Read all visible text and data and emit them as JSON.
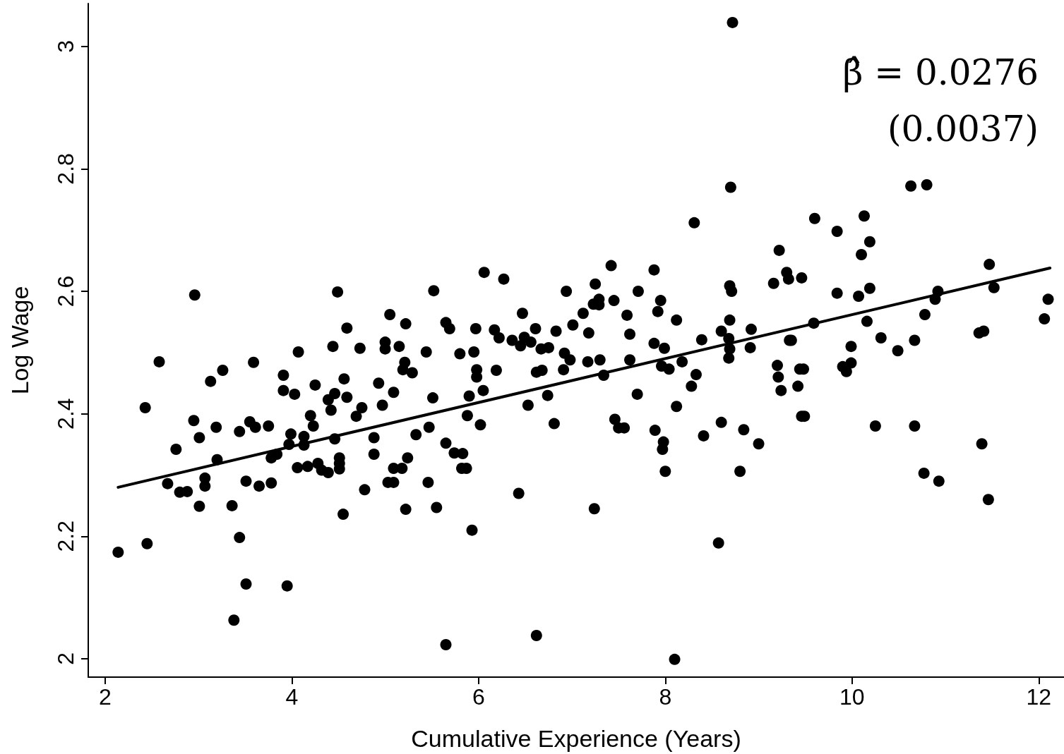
{
  "chart_data": {
    "type": "scatter",
    "xlabel": "Cumulative Experience (Years)",
    "ylabel": "Log Wage",
    "annotations": [
      "β̂ = 0.0276",
      "(0.0037)"
    ],
    "xlim": [
      1.82,
      12.27
    ],
    "ylim": [
      1.97,
      3.07
    ],
    "xticks": [
      2,
      4,
      6,
      8,
      10,
      12
    ],
    "yticks": [
      2,
      2.2,
      2.4,
      2.6,
      2.8,
      3
    ],
    "grid": false,
    "marker": "circle",
    "series": [
      {
        "color": "#000000",
        "x": [
          2.14,
          2.43,
          2.45,
          2.58,
          2.67,
          2.76,
          2.8,
          2.88,
          2.96,
          2.95,
          3.01,
          3.01,
          3.07,
          3.07,
          3.13,
          3.2,
          3.19,
          3.26,
          3.36,
          3.38,
          3.44,
          3.44,
          3.51,
          3.51,
          3.55,
          3.59,
          3.61,
          3.65,
          3.75,
          3.78,
          3.78,
          3.84,
          3.91,
          3.91,
          3.95,
          3.97,
          3.99,
          4.03,
          4.06,
          4.07,
          4.13,
          4.13,
          4.17,
          4.2,
          4.23,
          4.25,
          4.28,
          4.32,
          4.39,
          4.39,
          4.42,
          4.44,
          4.46,
          4.46,
          4.49,
          4.51,
          4.51,
          4.51,
          4.55,
          4.56,
          4.59,
          4.59,
          4.69,
          4.75,
          4.73,
          4.78,
          4.88,
          4.88,
          4.93,
          4.97,
          5.0,
          5.0,
          5.03,
          5.05,
          5.09,
          5.09,
          5.09,
          5.15,
          5.18,
          5.19,
          5.21,
          5.22,
          5.22,
          5.24,
          5.29,
          5.33,
          5.44,
          5.46,
          5.47,
          5.52,
          5.51,
          5.55,
          5.65,
          5.65,
          5.65,
          5.69,
          5.74,
          5.8,
          5.83,
          5.82,
          5.87,
          5.88,
          5.9,
          5.93,
          5.95,
          5.97,
          5.98,
          5.98,
          6.02,
          6.05,
          6.06,
          6.17,
          6.19,
          6.22,
          6.27,
          6.36,
          6.43,
          6.45,
          6.47,
          6.49,
          6.53,
          6.56,
          6.61,
          6.62,
          6.62,
          6.67,
          6.68,
          6.74,
          6.75,
          6.81,
          6.83,
          6.91,
          6.92,
          6.94,
          6.98,
          7.01,
          7.12,
          7.17,
          7.18,
          7.23,
          7.24,
          7.25,
          7.29,
          7.29,
          7.3,
          7.34,
          7.42,
          7.45,
          7.46,
          7.5,
          7.56,
          7.59,
          7.62,
          7.62,
          7.7,
          7.71,
          7.88,
          7.88,
          7.89,
          7.92,
          7.95,
          7.96,
          7.97,
          7.98,
          7.99,
          8.0,
          8.04,
          8.1,
          8.12,
          8.12,
          8.18,
          8.28,
          8.31,
          8.33,
          8.39,
          8.41,
          8.57,
          8.6,
          8.6,
          8.68,
          8.69,
          8.69,
          8.71,
          8.7,
          8.72,
          8.68,
          8.69,
          8.8,
          8.84,
          8.91,
          8.92,
          9.0,
          9.16,
          9.2,
          9.22,
          9.21,
          9.24,
          9.3,
          9.32,
          9.33,
          9.35,
          9.42,
          9.44,
          9.46,
          9.46,
          9.48,
          9.49,
          9.59,
          9.6,
          9.84,
          9.84,
          9.9,
          9.94,
          9.99,
          9.99,
          10.07,
          10.1,
          10.13,
          10.19,
          10.19,
          10.16,
          10.25,
          10.31,
          10.49,
          10.63,
          10.67,
          10.67,
          10.77,
          10.78,
          10.8,
          10.89,
          10.92,
          10.93,
          11.36,
          11.41,
          11.39,
          11.46,
          11.47,
          11.52,
          12.06,
          12.1
        ],
        "values": [
          2.174,
          2.41,
          2.188,
          2.485,
          2.286,
          2.342,
          2.272,
          2.273,
          2.594,
          2.389,
          2.249,
          2.361,
          2.282,
          2.295,
          2.453,
          2.325,
          2.378,
          2.471,
          2.25,
          2.063,
          2.371,
          2.198,
          2.29,
          2.122,
          2.387,
          2.484,
          2.378,
          2.282,
          2.38,
          2.328,
          2.287,
          2.334,
          2.463,
          2.438,
          2.119,
          2.35,
          2.367,
          2.432,
          2.312,
          2.501,
          2.363,
          2.349,
          2.314,
          2.397,
          2.38,
          2.447,
          2.319,
          2.308,
          2.304,
          2.423,
          2.406,
          2.51,
          2.433,
          2.359,
          2.599,
          2.328,
          2.319,
          2.31,
          2.236,
          2.457,
          2.54,
          2.427,
          2.396,
          2.41,
          2.507,
          2.276,
          2.361,
          2.334,
          2.45,
          2.414,
          2.517,
          2.506,
          2.288,
          2.562,
          2.311,
          2.288,
          2.435,
          2.51,
          2.311,
          2.472,
          2.484,
          2.547,
          2.244,
          2.328,
          2.467,
          2.366,
          2.501,
          2.288,
          2.378,
          2.601,
          2.426,
          2.247,
          2.023,
          2.352,
          2.549,
          2.539,
          2.336,
          2.498,
          2.335,
          2.311,
          2.311,
          2.397,
          2.429,
          2.21,
          2.501,
          2.539,
          2.46,
          2.472,
          2.382,
          2.438,
          2.631,
          2.537,
          2.471,
          2.524,
          2.62,
          2.52,
          2.27,
          2.511,
          2.564,
          2.525,
          2.414,
          2.517,
          2.539,
          2.038,
          2.468,
          2.506,
          2.471,
          2.43,
          2.508,
          2.384,
          2.535,
          2.472,
          2.499,
          2.6,
          2.488,
          2.545,
          2.564,
          2.485,
          2.532,
          2.579,
          2.245,
          2.612,
          2.578,
          2.587,
          2.488,
          2.463,
          2.642,
          2.585,
          2.391,
          2.377,
          2.377,
          2.561,
          2.53,
          2.488,
          2.432,
          2.6,
          2.635,
          2.515,
          2.373,
          2.567,
          2.585,
          2.478,
          2.342,
          2.354,
          2.507,
          2.306,
          2.473,
          1.999,
          2.412,
          2.553,
          2.485,
          2.445,
          2.712,
          2.464,
          2.521,
          2.364,
          2.189,
          2.386,
          2.535,
          2.523,
          2.553,
          2.609,
          2.6,
          2.77,
          3.039,
          2.491,
          2.506,
          2.306,
          2.374,
          2.508,
          2.538,
          2.351,
          2.613,
          2.479,
          2.667,
          2.46,
          2.438,
          2.631,
          2.62,
          2.52,
          2.52,
          2.445,
          2.473,
          2.622,
          2.396,
          2.473,
          2.396,
          2.548,
          2.719,
          2.698,
          2.597,
          2.477,
          2.469,
          2.51,
          2.483,
          2.592,
          2.66,
          2.723,
          2.681,
          2.605,
          2.551,
          2.38,
          2.524,
          2.503,
          2.772,
          2.52,
          2.38,
          2.303,
          2.562,
          2.774,
          2.587,
          2.6,
          2.29,
          2.532,
          2.535,
          2.351,
          2.26,
          2.644,
          2.606,
          2.555,
          2.587
        ]
      },
      {
        "type": "line",
        "color": "#000000",
        "marker": "none",
        "line_style": "solid",
        "x": [
          2.14,
          12.12
        ],
        "values": [
          2.28,
          2.638
        ]
      }
    ]
  }
}
